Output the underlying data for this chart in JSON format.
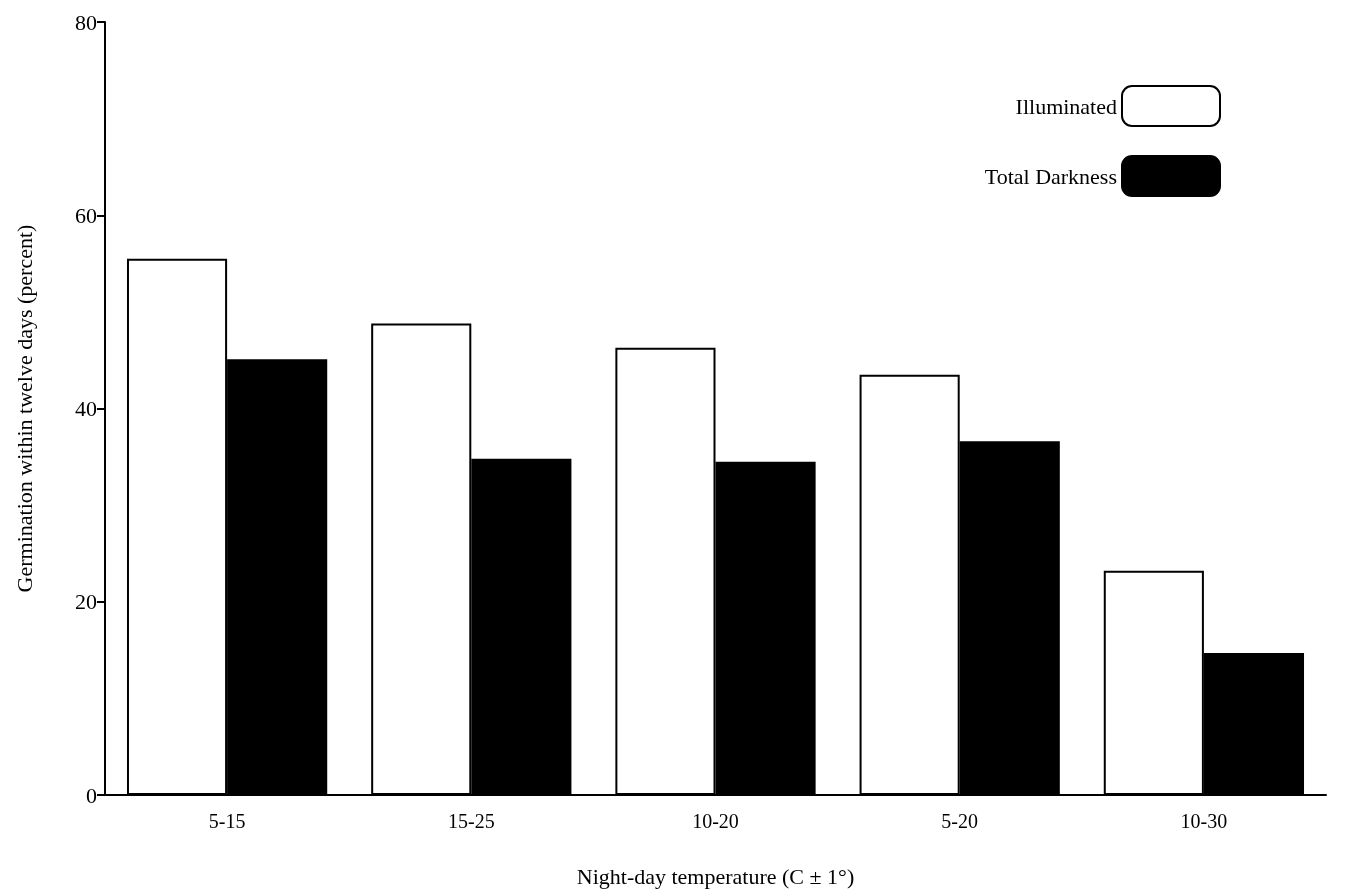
{
  "chart_data": {
    "type": "bar",
    "xlabel": "Night-day temperature (C ± 1°)",
    "ylabel": "Germination within twelve days (percent)",
    "categories": [
      "5-15",
      "15-25",
      "10-20",
      "5-20",
      "10-30"
    ],
    "series": [
      {
        "name": "Illuminated",
        "color": "#ffffff",
        "values": [
          55.5,
          48.8,
          46.3,
          43.5,
          23.2
        ]
      },
      {
        "name": "Total Darkness",
        "color": "#000000",
        "values": [
          45.1,
          34.8,
          34.5,
          36.6,
          14.7
        ]
      }
    ],
    "ylim": [
      0,
      80
    ],
    "yticks": [
      0,
      20,
      40,
      60,
      80
    ],
    "grid": false,
    "legend": "top right"
  }
}
